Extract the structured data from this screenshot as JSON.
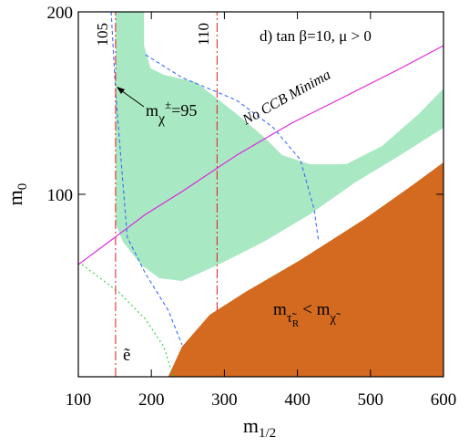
{
  "chart_data": {
    "type": "region",
    "annotation": "d) tan β=10, μ > 0",
    "x_label": {
      "main": "m",
      "sub": "1/2"
    },
    "y_label": {
      "main": "m",
      "sub": "0"
    },
    "xlim": [
      100,
      600
    ],
    "ylim": [
      0,
      200
    ],
    "xticks": [
      100,
      200,
      300,
      400,
      500,
      600
    ],
    "yticks": [
      100,
      200
    ],
    "areas": [
      {
        "color": "#d36a1f",
        "x": [
          223,
          242,
          280,
          329,
          404,
          492,
          554,
          600,
          600
        ],
        "y": [
          0,
          16.5,
          34,
          46.5,
          64,
          86.5,
          104,
          117.5,
          0
        ]
      },
      {
        "color": "#a8e8c2",
        "x": [
          151,
          190,
          190,
          199,
          217,
          261,
          317,
          354,
          379,
          417,
          467,
          516,
          566,
          600,
          600,
          541,
          479,
          417,
          354,
          292,
          242,
          211,
          186,
          161,
          151
        ],
        "y": [
          200,
          200,
          181.5,
          169,
          165.5,
          161.5,
          144,
          131.5,
          121.5,
          116.5,
          116.5,
          126.5,
          144,
          158,
          136.5,
          121.5,
          106.5,
          89,
          74,
          61.5,
          52.5,
          54,
          61.5,
          74,
          84
        ]
      }
    ],
    "lines": [
      {
        "color": "#e020e0",
        "dash": "none",
        "x": [
          100,
          142,
          192,
          242,
          317,
          392,
          467,
          541,
          600
        ],
        "y": [
          61.5,
          74,
          89,
          101.5,
          121.5,
          139,
          154,
          169,
          181.5
        ],
        "label": "No CCB Minima"
      },
      {
        "color": "#3a6cff",
        "dash": "4 3",
        "x": [
          145,
          151,
          167,
          192,
          223,
          242
        ],
        "y": [
          200,
          156.5,
          76.5,
          56.5,
          36.5,
          17.5
        ]
      },
      {
        "color": "#3a6cff",
        "dash": "4 3",
        "x": [
          192,
          242,
          317,
          367,
          404,
          423,
          429
        ],
        "y": [
          176.5,
          164,
          151.5,
          136.5,
          119,
          91.5,
          74
        ]
      },
      {
        "color": "#2ecc40",
        "dash": "2 3",
        "x": [
          105,
          155,
          192,
          217,
          230
        ],
        "y": [
          61.5,
          46.5,
          31.5,
          16.5,
          0
        ]
      },
      {
        "color": "#e03030",
        "dash": "10 3 2 3",
        "x": [
          151,
          151
        ],
        "y": [
          0,
          200
        ],
        "label": "105"
      },
      {
        "color": "#e03030",
        "dash": "10 3 2 3",
        "x": [
          290,
          290
        ],
        "y": [
          36,
          200
        ],
        "label": "110"
      }
    ],
    "chargino_label": {
      "main": "m",
      "sub": "χ",
      "sup": "±",
      "rest": "=95"
    },
    "stau_label": {
      "main": "m",
      "sub": "τ̃",
      "subsub": "R",
      "mid": "< m",
      "sub2": "χ̃"
    },
    "selectron_label": "ẽ"
  }
}
